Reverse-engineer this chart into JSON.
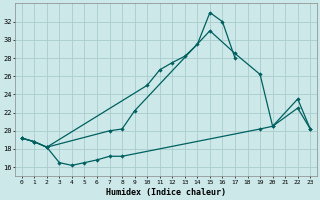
{
  "xlabel": "Humidex (Indice chaleur)",
  "bg_color": "#cce8e8",
  "grid_color": "#aacccc",
  "line_color": "#006060",
  "xlim_min": -0.5,
  "xlim_max": 23.5,
  "ylim_min": 15.0,
  "ylim_max": 34.0,
  "yticks": [
    16,
    18,
    20,
    22,
    24,
    26,
    28,
    30,
    32
  ],
  "xticks": [
    0,
    1,
    2,
    3,
    4,
    5,
    6,
    7,
    8,
    9,
    10,
    11,
    12,
    13,
    14,
    15,
    16,
    17,
    18,
    19,
    20,
    21,
    22,
    23
  ],
  "line1_x": [
    0,
    1,
    2,
    10,
    11,
    12,
    13,
    14,
    15,
    16,
    17
  ],
  "line1_y": [
    19.2,
    18.8,
    18.2,
    25.0,
    26.7,
    27.5,
    28.2,
    29.5,
    33.0,
    32.0,
    28.0
  ],
  "line2_x": [
    0,
    1,
    2,
    7,
    8,
    9,
    15,
    17,
    19,
    20,
    22,
    23
  ],
  "line2_y": [
    19.2,
    18.8,
    18.2,
    20.0,
    20.2,
    22.2,
    31.0,
    28.5,
    26.2,
    20.5,
    23.5,
    20.2
  ],
  "line3_x": [
    0,
    1,
    2,
    3,
    4,
    5,
    6,
    7,
    8,
    19,
    20,
    22,
    23
  ],
  "line3_y": [
    19.2,
    18.8,
    18.2,
    16.5,
    16.2,
    16.5,
    16.8,
    17.2,
    17.2,
    20.2,
    20.5,
    22.5,
    20.2
  ]
}
